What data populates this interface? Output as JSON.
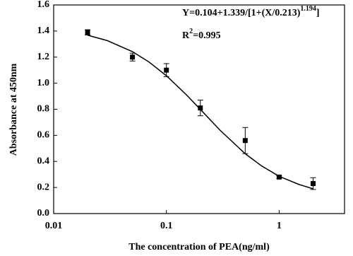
{
  "chart_data": {
    "type": "scatter",
    "x_label": "The concentration of PEA(ng/ml)",
    "y_label": "Absorbance at 450nm",
    "x_scale": "log",
    "xlim": [
      0.01,
      3.8
    ],
    "xticks": [
      0.01,
      0.1,
      1
    ],
    "ylim": [
      0,
      1.6
    ],
    "yticks": [
      {
        "value": 0,
        "label": "0.0"
      },
      {
        "value": 0.2,
        "label": "0.2"
      },
      {
        "value": 0.4,
        "label": "0.4"
      },
      {
        "value": 0.6,
        "label": "0.6"
      },
      {
        "value": 0.8,
        "label": "0.8"
      },
      {
        "value": 1,
        "label": "1.0"
      },
      {
        "value": 1.2,
        "label": "1.2"
      },
      {
        "value": 1.4,
        "label": "1.4"
      },
      {
        "value": 1.6,
        "label": "1.6"
      }
    ],
    "grid": false,
    "equation": {
      "text": "Y=0.104+1.339/[1+(X/0.213)",
      "exponent": "1.194",
      "close": "]"
    },
    "r_squared": {
      "text": "R",
      "sup": "2",
      "value": "=0.995"
    },
    "series": [
      {
        "type": "scatter",
        "color": "#000000",
        "x": [
          0.02,
          0.05,
          0.1,
          0.2,
          0.5,
          1,
          2
        ],
        "values": [
          1.39,
          1.2,
          1.1,
          0.81,
          0.56,
          0.28,
          0.23
        ],
        "errors": [
          0.02,
          0.03,
          0.05,
          0.06,
          0.1,
          0.01,
          0.045
        ]
      },
      {
        "type": "line",
        "color": "#000000",
        "x": [
          0.02,
          0.03,
          0.05,
          0.07,
          0.1,
          0.15,
          0.2,
          0.3,
          0.5,
          0.7,
          1,
          1.5,
          2
        ],
        "values": [
          1.368,
          1.326,
          1.242,
          1.163,
          1.057,
          0.912,
          0.799,
          0.638,
          0.459,
          0.365,
          0.286,
          0.223,
          0.19
        ]
      }
    ]
  }
}
